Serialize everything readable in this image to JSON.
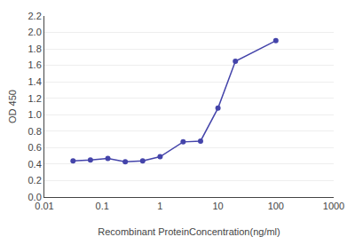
{
  "chart_data": {
    "type": "line",
    "x": [
      0.0313,
      0.0625,
      0.125,
      0.25,
      0.5,
      1.0,
      2.5,
      5.0,
      10.0,
      20.0,
      100.0
    ],
    "values": [
      0.44,
      0.45,
      0.47,
      0.43,
      0.44,
      0.49,
      0.67,
      0.68,
      1.08,
      1.65,
      1.9
    ],
    "color": "#4444aa",
    "marker": "circle",
    "x_label": "Recombinant ProteinConcentration(ng/ml)",
    "y_label": "OD 450",
    "log": "x",
    "xlim": [
      0.01,
      1000
    ],
    "ylim": [
      0,
      2.2
    ],
    "xticks": [
      0.01,
      0.1,
      1,
      10,
      100,
      1000
    ],
    "yticks": [
      {
        "value": 0,
        "label": "0.0"
      },
      0.2,
      0.4,
      0.6,
      0.8,
      {
        "value": 1.0,
        "label": "1.0"
      },
      1.2,
      1.4,
      1.6,
      1.8,
      {
        "value": 2.0,
        "label": "2.0"
      },
      2.2
    ],
    "grid": true
  }
}
